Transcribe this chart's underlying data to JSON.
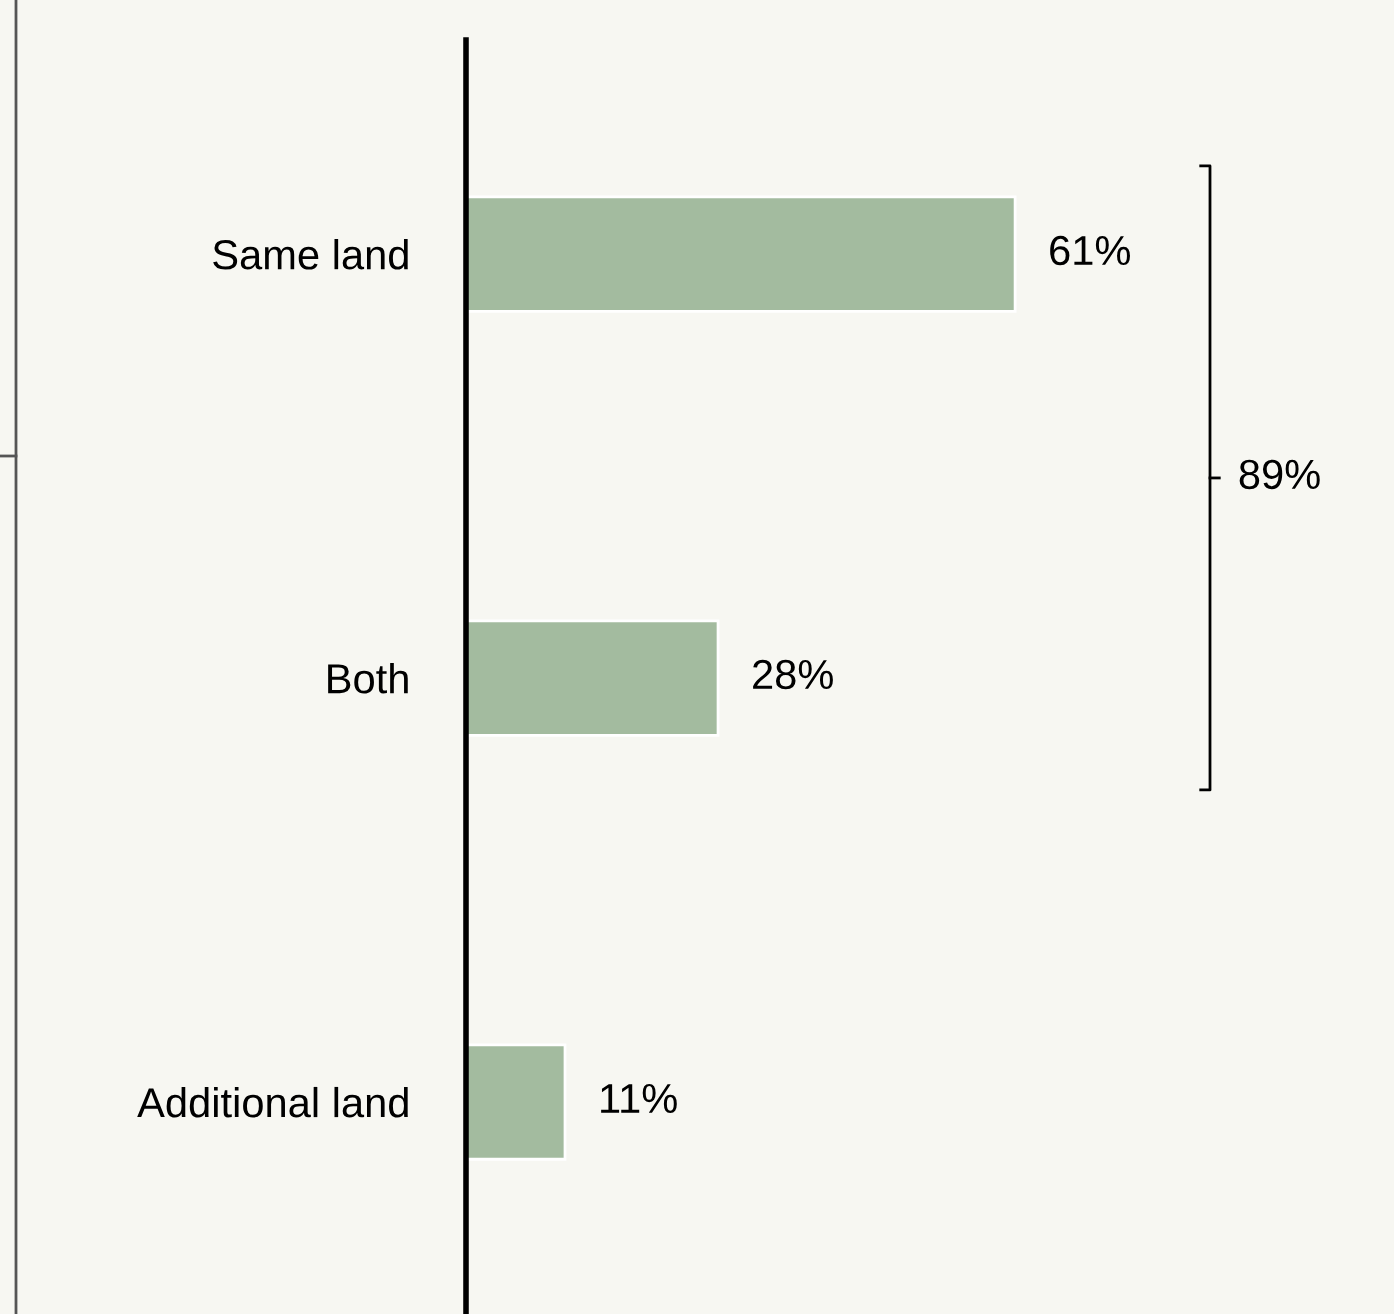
{
  "chart_data": {
    "type": "bar",
    "orientation": "horizontal",
    "categories": [
      "Same land",
      "Both",
      "Additional land"
    ],
    "values": [
      61,
      28,
      11
    ],
    "value_labels": [
      "61%",
      "28%",
      "11%"
    ],
    "color": "#a3bb9f",
    "annotations": [
      "89%"
    ],
    "grid": false,
    "legend": false,
    "tick_labels": "y"
  }
}
